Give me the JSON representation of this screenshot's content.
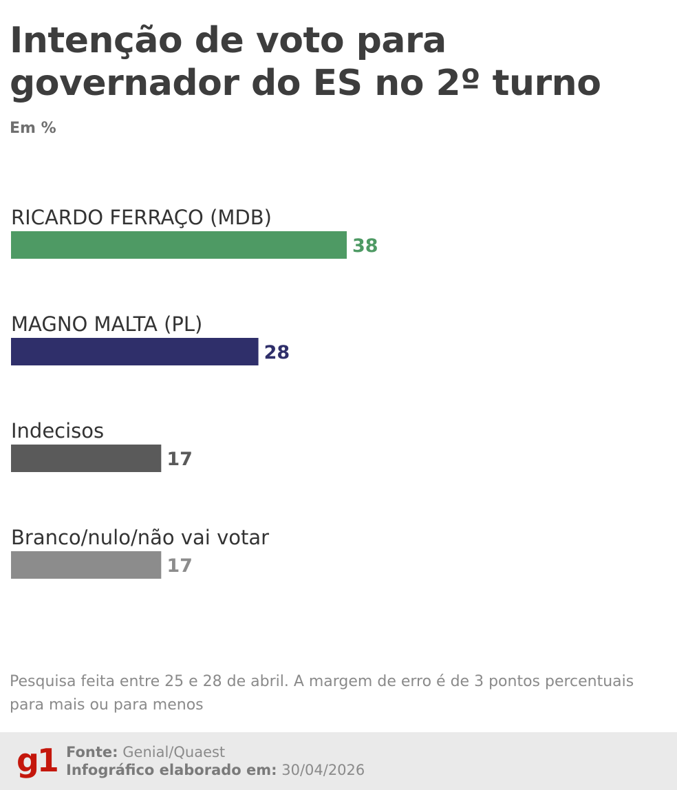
{
  "title": "Intenção de voto para governador do ES no 2º turno",
  "subtitle": "Em %",
  "note": "Pesquisa feita entre 25 e 28 de abril. A margem de erro é de 3 pontos percentuais para mais ou para menos",
  "footer": {
    "logo": "g1",
    "source_label": "Fonte:",
    "source_value": "Genial/Quaest",
    "date_label": "Infográfico elaborado em:",
    "date_value": "30/04/2026"
  },
  "colors": {
    "ferraco": "#4e9a64",
    "malta": "#2f2f6a",
    "indecisos": "#5a5a5a",
    "branco": "#8c8c8c",
    "logo": "#c4170c"
  },
  "chart_data": {
    "type": "bar",
    "orientation": "horizontal",
    "categories": [
      "RICARDO FERRAÇO (MDB)",
      "MAGNO MALTA (PL)",
      "Indecisos",
      "Branco/nulo/não vai votar"
    ],
    "values": [
      38,
      28,
      17,
      17
    ],
    "value_labels": [
      "38",
      "28",
      "17",
      "17"
    ],
    "bar_colors": [
      "#4e9a64",
      "#2f2f6a",
      "#5a5a5a",
      "#8c8c8c"
    ],
    "xlim": [
      0,
      38
    ],
    "grid": false,
    "legend": "none"
  }
}
